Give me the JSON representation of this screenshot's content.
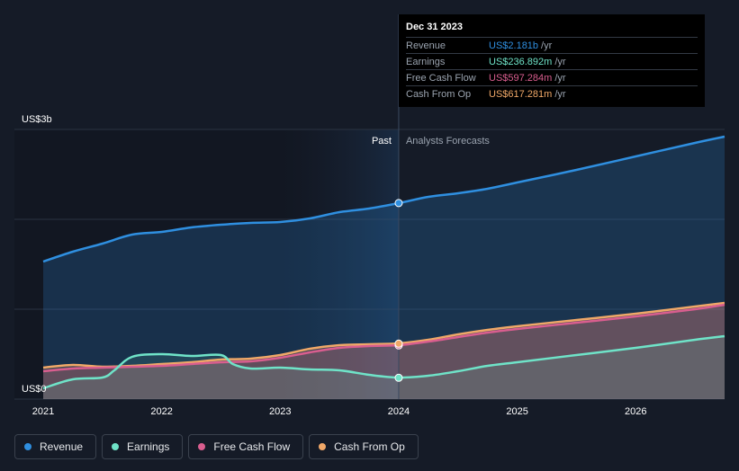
{
  "colors": {
    "revenue": "#2f8fe0",
    "earnings": "#6fe3c8",
    "free_cash_flow": "#d95e8f",
    "cash_from_op": "#f0a868",
    "background": "#151b27"
  },
  "tooltip": {
    "date": "Dec 31 2023",
    "rows": [
      {
        "label": "Revenue",
        "value": "US$2.181b",
        "unit": "/yr",
        "color": "#2f8fe0"
      },
      {
        "label": "Earnings",
        "value": "US$236.892m",
        "unit": "/yr",
        "color": "#6fe3c8"
      },
      {
        "label": "Free Cash Flow",
        "value": "US$597.284m",
        "unit": "/yr",
        "color": "#d95e8f"
      },
      {
        "label": "Cash From Op",
        "value": "US$617.281m",
        "unit": "/yr",
        "color": "#f0a868"
      }
    ]
  },
  "legend": [
    {
      "label": "Revenue",
      "color": "#2f8fe0"
    },
    {
      "label": "Earnings",
      "color": "#6fe3c8"
    },
    {
      "label": "Free Cash Flow",
      "color": "#d95e8f"
    },
    {
      "label": "Cash From Op",
      "color": "#f0a868"
    }
  ],
  "chart_data": {
    "type": "line",
    "y_axis_labels": {
      "top": "US$3b",
      "bottom": "US$0"
    },
    "ylim": [
      0,
      3.0
    ],
    "xlim": [
      2021.0,
      2026.75
    ],
    "x_ticks": [
      "2021",
      "2022",
      "2023",
      "2024",
      "2025",
      "2026"
    ],
    "x_tick_values": [
      2021,
      2022,
      2023,
      2024,
      2025,
      2026
    ],
    "past_label": "Past",
    "forecast_label": "Analysts Forecasts",
    "divider_x": 2024.0,
    "grid": true,
    "legend_position": "bottom-left",
    "series": [
      {
        "name": "Revenue",
        "color": "#2f8fe0",
        "x": [
          2021.0,
          2021.25,
          2021.5,
          2021.75,
          2022.0,
          2022.25,
          2022.5,
          2022.75,
          2023.0,
          2023.25,
          2023.5,
          2023.75,
          2024.0,
          2024.25,
          2024.5,
          2024.75,
          2025.0,
          2025.5,
          2026.0,
          2026.5,
          2026.75
        ],
        "y": [
          1.53,
          1.64,
          1.73,
          1.83,
          1.86,
          1.91,
          1.94,
          1.96,
          1.97,
          2.01,
          2.08,
          2.12,
          2.18,
          2.25,
          2.29,
          2.34,
          2.41,
          2.55,
          2.7,
          2.85,
          2.92
        ]
      },
      {
        "name": "Earnings",
        "color": "#6fe3c8",
        "x": [
          2021.0,
          2021.25,
          2021.5,
          2021.6,
          2021.75,
          2022.0,
          2022.25,
          2022.5,
          2022.6,
          2022.75,
          2023.0,
          2023.25,
          2023.5,
          2023.75,
          2024.0,
          2024.25,
          2024.5,
          2024.75,
          2025.0,
          2025.5,
          2026.0,
          2026.5,
          2026.75
        ],
        "y": [
          0.12,
          0.22,
          0.24,
          0.32,
          0.47,
          0.5,
          0.48,
          0.49,
          0.39,
          0.34,
          0.35,
          0.33,
          0.32,
          0.27,
          0.24,
          0.26,
          0.31,
          0.37,
          0.41,
          0.49,
          0.57,
          0.66,
          0.7
        ]
      },
      {
        "name": "Free Cash Flow",
        "color": "#d95e8f",
        "x": [
          2021.0,
          2021.25,
          2021.5,
          2021.75,
          2022.0,
          2022.25,
          2022.5,
          2022.75,
          2023.0,
          2023.25,
          2023.5,
          2023.75,
          2024.0,
          2024.25,
          2024.5,
          2024.75,
          2025.0,
          2025.5,
          2026.0,
          2026.5,
          2026.75
        ],
        "y": [
          0.31,
          0.34,
          0.35,
          0.36,
          0.37,
          0.39,
          0.41,
          0.42,
          0.46,
          0.52,
          0.57,
          0.59,
          0.6,
          0.64,
          0.69,
          0.74,
          0.78,
          0.85,
          0.92,
          1.0,
          1.05
        ]
      },
      {
        "name": "Cash From Op",
        "color": "#f0a868",
        "x": [
          2021.0,
          2021.25,
          2021.5,
          2021.75,
          2022.0,
          2022.25,
          2022.5,
          2022.75,
          2023.0,
          2023.25,
          2023.5,
          2023.75,
          2024.0,
          2024.25,
          2024.5,
          2024.75,
          2025.0,
          2025.5,
          2026.0,
          2026.5,
          2026.75
        ],
        "y": [
          0.35,
          0.38,
          0.36,
          0.37,
          0.39,
          0.41,
          0.44,
          0.45,
          0.49,
          0.56,
          0.6,
          0.61,
          0.62,
          0.66,
          0.72,
          0.77,
          0.81,
          0.88,
          0.95,
          1.03,
          1.07
        ]
      }
    ],
    "highlight_x": 2024.0,
    "highlight_points": [
      {
        "series": "Revenue",
        "y": 2.181
      },
      {
        "series": "Earnings",
        "y": 0.237
      },
      {
        "series": "Free Cash Flow",
        "y": 0.597
      },
      {
        "series": "Cash From Op",
        "y": 0.617
      }
    ]
  }
}
